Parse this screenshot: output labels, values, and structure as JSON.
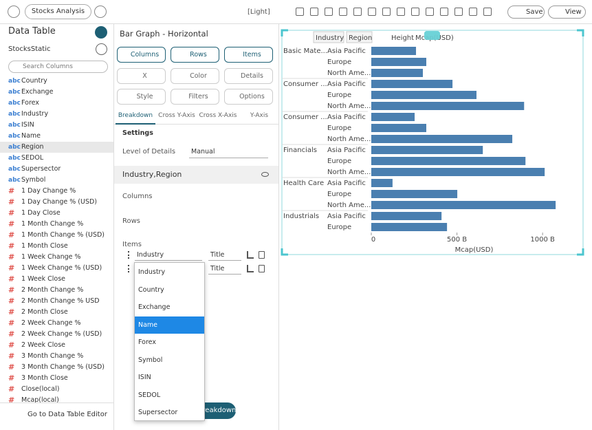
{
  "toolbar": {
    "tab": "Stocks Analysis",
    "theme": "[Light]",
    "save": "Save",
    "view": "View"
  },
  "data_panel": {
    "title": "Data Table",
    "source": "StocksStatic",
    "search_placeholder": "Search Columns",
    "fields": [
      {
        "type": "abc",
        "name": "Country"
      },
      {
        "type": "abc",
        "name": "Exchange"
      },
      {
        "type": "abc",
        "name": "Forex"
      },
      {
        "type": "abc",
        "name": "Industry"
      },
      {
        "type": "abc",
        "name": "ISIN"
      },
      {
        "type": "abc",
        "name": "Name"
      },
      {
        "type": "abc",
        "name": "Region"
      },
      {
        "type": "abc",
        "name": "SEDOL"
      },
      {
        "type": "abc",
        "name": "Supersector"
      },
      {
        "type": "abc",
        "name": "Symbol"
      },
      {
        "type": "#",
        "name": "1 Day Change %"
      },
      {
        "type": "#",
        "name": "1 Day Change % (USD)"
      },
      {
        "type": "#",
        "name": "1 Day Close"
      },
      {
        "type": "#",
        "name": "1 Month Change %"
      },
      {
        "type": "#",
        "name": "1 Month Change % (USD)"
      },
      {
        "type": "#",
        "name": "1 Month Close"
      },
      {
        "type": "#",
        "name": "1 Week Change %"
      },
      {
        "type": "#",
        "name": "1 Week Change % (USD)"
      },
      {
        "type": "#",
        "name": "1 Week Close"
      },
      {
        "type": "#",
        "name": "2 Month Change %"
      },
      {
        "type": "#",
        "name": "2 Month Change % USD"
      },
      {
        "type": "#",
        "name": "2 Month Close"
      },
      {
        "type": "#",
        "name": "2 Week Change %"
      },
      {
        "type": "#",
        "name": "2 Week Change % (USD)"
      },
      {
        "type": "#",
        "name": "2 Week Close"
      },
      {
        "type": "#",
        "name": "3 Month Change %"
      },
      {
        "type": "#",
        "name": "3 Month Change % (USD)"
      },
      {
        "type": "#",
        "name": "3 Month Close"
      },
      {
        "type": "#",
        "name": "Close(local)"
      },
      {
        "type": "#",
        "name": "Mcap(local)"
      }
    ],
    "footer": "Go to Data Table Editor"
  },
  "settings_panel": {
    "title": "Bar Graph - Horizontal",
    "shelves": [
      "Columns",
      "Rows",
      "Items"
    ],
    "options": [
      "X",
      "Color",
      "Details",
      "Style",
      "Filters",
      "Options"
    ],
    "tabs": [
      "Breakdown",
      "Cross Y-Axis",
      "Cross X-Axis",
      "Y-Axis"
    ],
    "section": "Settings",
    "level_label": "Level of Details",
    "level_value": "Manual",
    "breakdown": "Industry,Region",
    "zones": [
      "Columns",
      "Rows",
      "Items"
    ],
    "items": [
      {
        "field": "Industry",
        "mode": "Title"
      },
      {
        "mode": "Title"
      }
    ],
    "add_button": "Add Breakdown",
    "dropdown": {
      "options": [
        "Industry",
        "Country",
        "Exchange",
        "Name",
        "Forex",
        "Symbol",
        "ISIN",
        "SEDOL",
        "Supersector"
      ]
    }
  },
  "chart": {
    "type": "bar",
    "toolbar": [
      "Industry",
      "Region",
      "Height",
      "Mcap(USD)"
    ],
    "groups": [
      "Basic Mate...",
      null,
      null,
      "Consumer ...",
      null,
      null,
      "Consumer ...",
      null,
      null,
      "Financials",
      null,
      null,
      "Health Care",
      null,
      null,
      "Industrials",
      null
    ],
    "categories": [
      "Asia Pacific",
      "Europe",
      "North Ame...",
      "Asia Pacific",
      "Europe",
      "North Ame...",
      "Asia Pacific",
      "Europe",
      "North Ame...",
      "Asia Pacific",
      "Europe",
      "North Ame...",
      "Asia Pacific",
      "Europe",
      "North Ame...",
      "Asia Pacific",
      "Europe"
    ],
    "values": [
      261,
      321,
      301,
      474,
      614,
      892,
      253,
      321,
      823,
      651,
      900,
      1012,
      124,
      502,
      1076,
      410,
      442
    ],
    "color": "#4a7fb0",
    "xlim": [
      0,
      1200
    ],
    "xticks": [
      0,
      {
        "value": 500,
        "label": "500 B"
      },
      {
        "value": 1000,
        "label": "1000 B"
      }
    ],
    "xlabel": "Mcap(USD)"
  }
}
